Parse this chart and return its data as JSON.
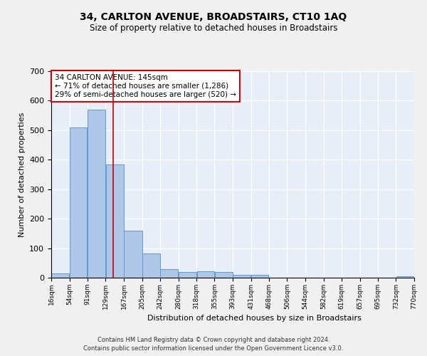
{
  "title_line1": "34, CARLTON AVENUE, BROADSTAIRS, CT10 1AQ",
  "title_line2": "Size of property relative to detached houses in Broadstairs",
  "xlabel": "Distribution of detached houses by size in Broadstairs",
  "ylabel": "Number of detached properties",
  "bar_edges": [
    16,
    54,
    91,
    129,
    167,
    205,
    242,
    280,
    318,
    355,
    393,
    431,
    468,
    506,
    544,
    582,
    619,
    657,
    695,
    732,
    770
  ],
  "bar_heights": [
    14,
    510,
    570,
    385,
    160,
    82,
    30,
    19,
    21,
    19,
    10,
    10,
    0,
    0,
    0,
    0,
    0,
    0,
    0,
    6
  ],
  "bar_color": "#aec6e8",
  "bar_edge_color": "#5b9bd5",
  "property_size": 145,
  "property_label": "34 CARLTON AVENUE: 145sqm",
  "annotation_line1": "← 71% of detached houses are smaller (1,286)",
  "annotation_line2": "29% of semi-detached houses are larger (520) →",
  "marker_color": "#cc0000",
  "annotation_box_color": "#ffffff",
  "annotation_box_edge": "#cc0000",
  "ylim": [
    0,
    700
  ],
  "yticks": [
    0,
    100,
    200,
    300,
    400,
    500,
    600,
    700
  ],
  "background_color": "#e8eef7",
  "grid_color": "#ffffff",
  "fig_background": "#f0f0f0",
  "footer_line1": "Contains HM Land Registry data © Crown copyright and database right 2024.",
  "footer_line2": "Contains public sector information licensed under the Open Government Licence v3.0."
}
